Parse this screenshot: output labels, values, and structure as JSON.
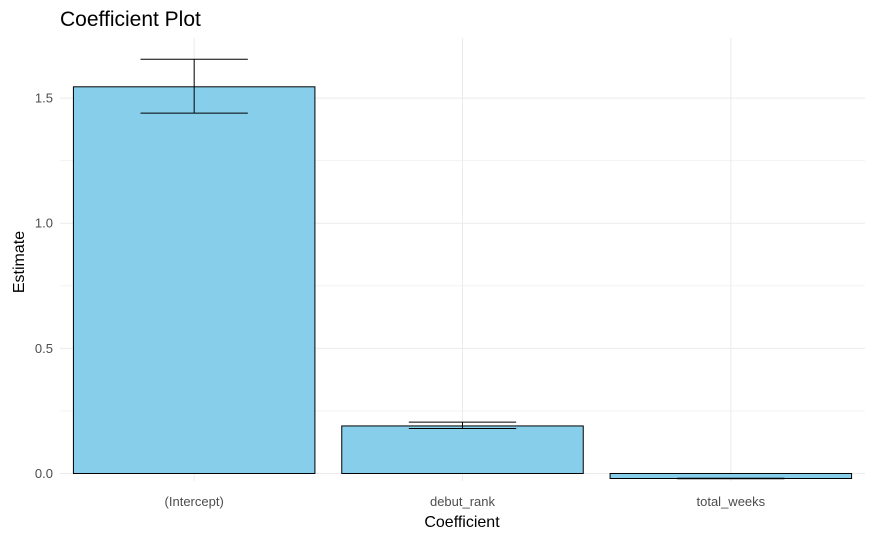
{
  "chart_data": {
    "type": "bar",
    "title": "Coefficient Plot",
    "xlabel": "Coefficient",
    "ylabel": "Estimate",
    "categories": [
      "(Intercept)",
      "debut_rank",
      "total_weeks"
    ],
    "values": [
      1.545,
      0.19,
      -0.02
    ],
    "error_low": [
      1.44,
      0.18,
      -0.021
    ],
    "error_high": [
      1.655,
      0.205,
      -0.019
    ],
    "ylim": [
      -0.03,
      1.74
    ],
    "yticks": [
      0.0,
      0.5,
      1.0,
      1.5
    ],
    "ytick_labels": [
      "0.0",
      "0.5",
      "1.0",
      "1.5"
    ],
    "grid": true,
    "bar_color": "#87CEEB",
    "edge_color": "#000000"
  }
}
